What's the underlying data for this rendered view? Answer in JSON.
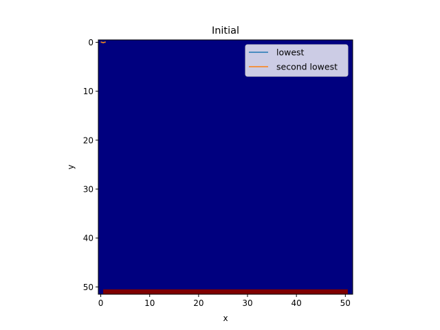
{
  "chart_data": {
    "type": "heatmap",
    "title": "Initial",
    "xlabel": "x",
    "ylabel": "y",
    "xlim": [
      -0.5,
      51.5
    ],
    "ylim": [
      51.5,
      -0.5
    ],
    "y_inverted": true,
    "grid": false,
    "x_ticks": [
      0,
      10,
      20,
      30,
      40,
      50
    ],
    "y_ticks": [
      0,
      10,
      20,
      30,
      40,
      50
    ],
    "x_tick_labels": [
      "0",
      "10",
      "20",
      "30",
      "40",
      "50"
    ],
    "y_tick_labels": [
      "0",
      "10",
      "20",
      "30",
      "40",
      "50"
    ],
    "heatmap": {
      "colormap": "jet",
      "background_value": "low",
      "background_color": "#00007f",
      "highlight_band": {
        "rows": [
          51,
          51
        ],
        "cols": [
          1,
          50
        ],
        "color": "#7f0000"
      }
    },
    "series": [
      {
        "name": "lowest",
        "color": "#1f77b4",
        "x": [
          0.0,
          1.0
        ],
        "y": [
          0.0,
          0.0
        ]
      },
      {
        "name": "second lowest",
        "color": "#ff7f0e",
        "x": [
          0.0,
          0.5,
          1.0
        ],
        "y": [
          -0.1,
          0.1,
          -0.1
        ]
      }
    ],
    "legend": {
      "placement": "upper right",
      "entries": [
        "lowest",
        "second lowest"
      ]
    }
  }
}
